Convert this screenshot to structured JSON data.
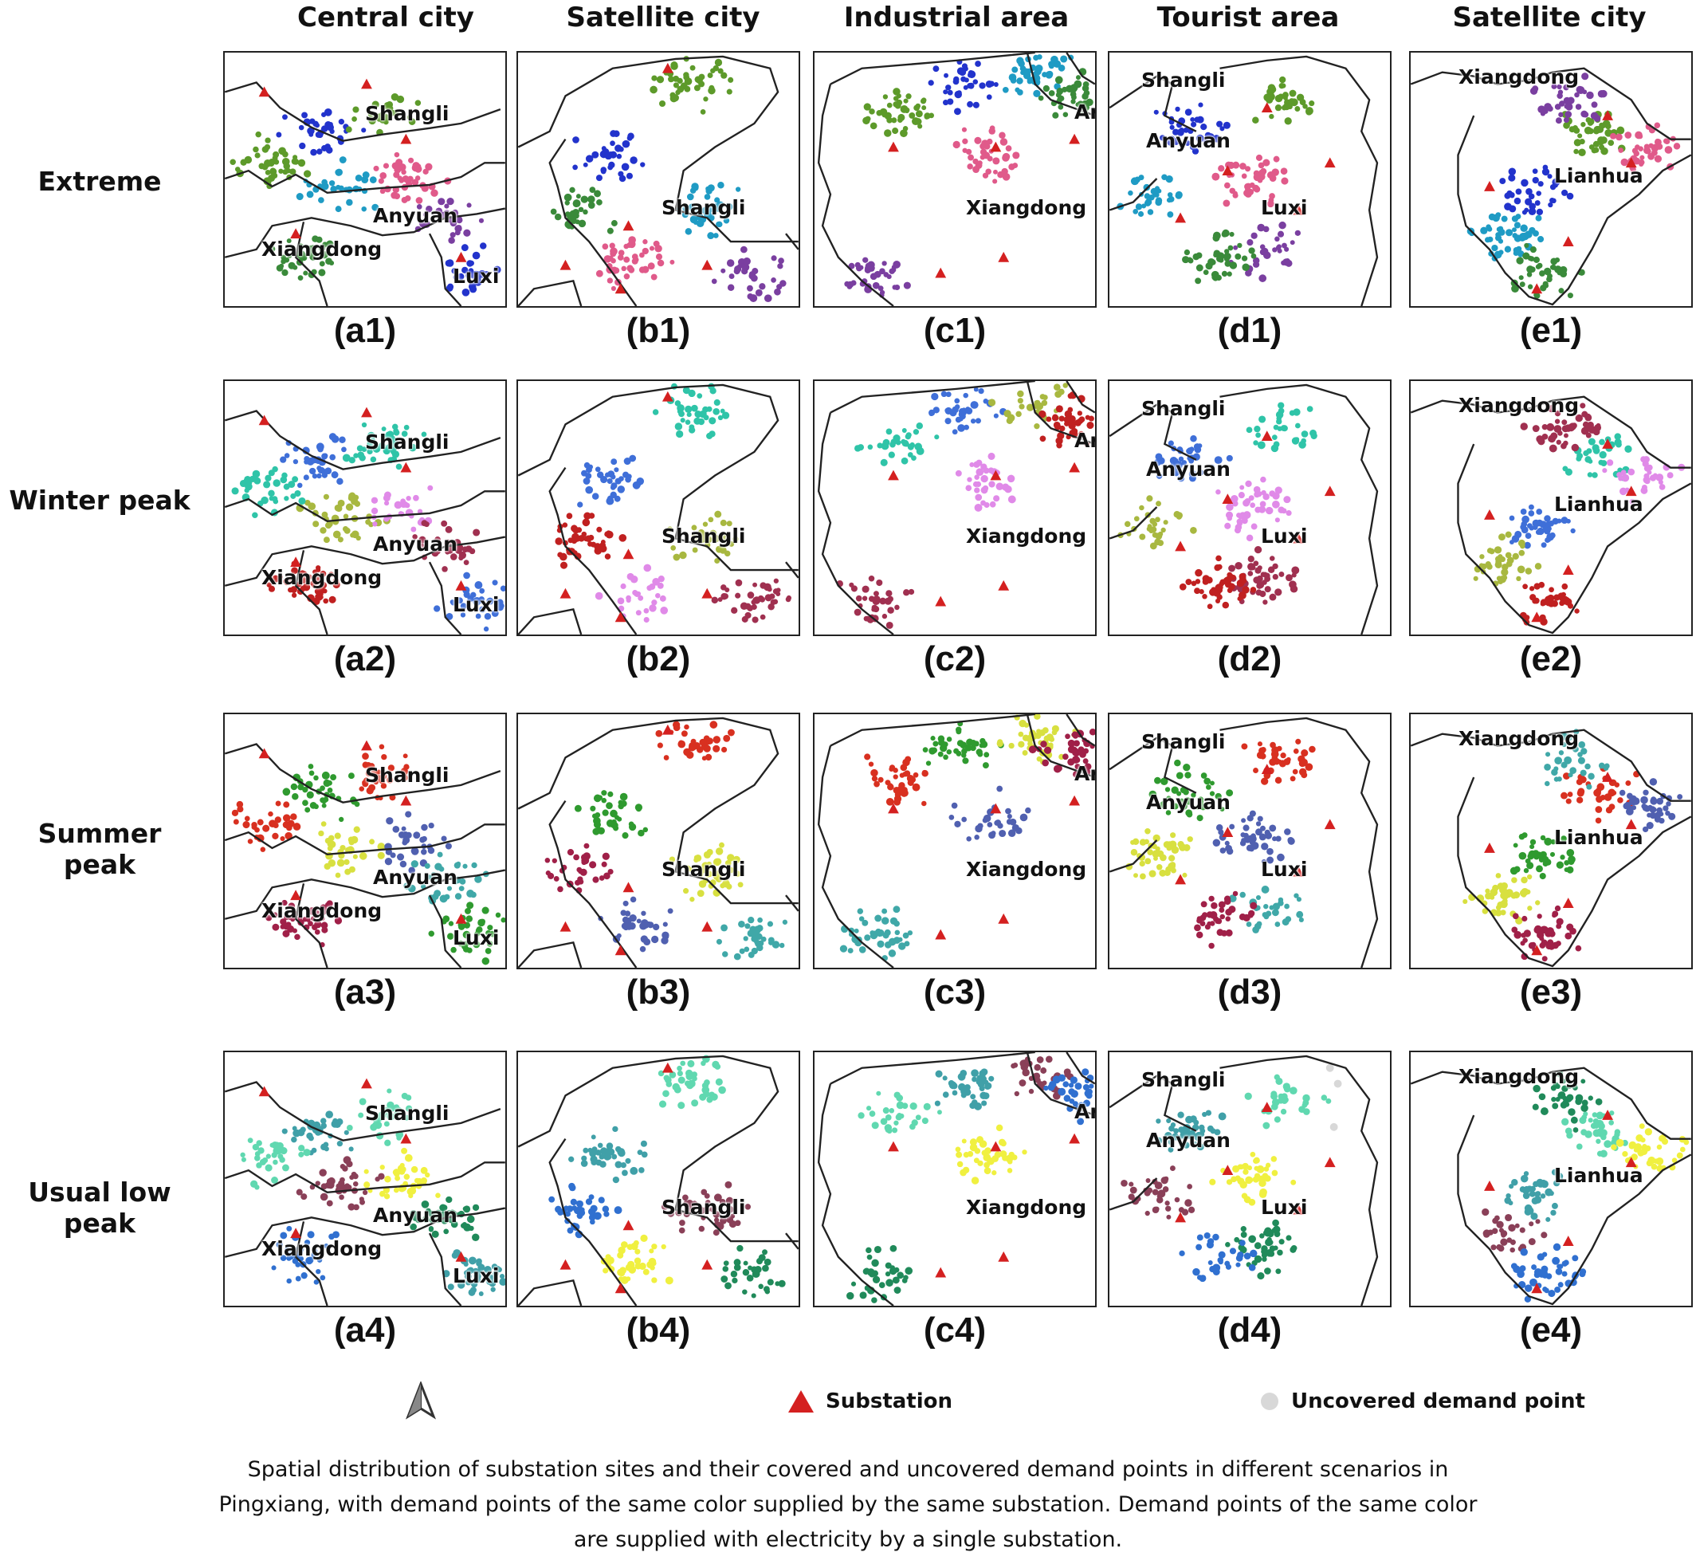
{
  "columns": [
    "Central city",
    "Satellite city",
    "Industrial area",
    "Tourist area",
    "Satellite city"
  ],
  "rows": [
    "Extreme",
    "Winter peak",
    "Summer peak",
    "Usual low peak"
  ],
  "panel_labels": [
    [
      "(a1)",
      "(b1)",
      "(c1)",
      "(d1)",
      "(e1)"
    ],
    [
      "(a2)",
      "(b2)",
      "(c2)",
      "(d2)",
      "(e2)"
    ],
    [
      "(a3)",
      "(b3)",
      "(c3)",
      "(d3)",
      "(e3)"
    ],
    [
      "(a4)",
      "(b4)",
      "(c4)",
      "(d4)",
      "(e4)"
    ]
  ],
  "place_names": {
    "a": [
      "Shangli",
      "Anyuan",
      "Xiangdong",
      "Luxi"
    ],
    "b": [
      "Shangli"
    ],
    "c": [
      "Xiangdong",
      "Ar"
    ],
    "d": [
      "Shangli",
      "Anyuan",
      "Luxi"
    ],
    "e": [
      "Xiangdong",
      "Lianhua"
    ]
  },
  "legend": {
    "north_arrow": "north-arrow-icon",
    "substation": "Substation",
    "uncovered": "Uncovered demand point",
    "substation_color": "#d42020",
    "uncovered_color": "#d8d8d8"
  },
  "cluster_palettes": [
    [
      "#2233cc",
      "#5d9a2a",
      "#1f9bc4",
      "#e05a8a",
      "#7a3fa0",
      "#3a8a3a"
    ],
    [
      "#3f6fd8",
      "#2fc4a8",
      "#a8b840",
      "#e08ae8",
      "#a03050",
      "#c02020"
    ],
    [
      "#2f9a2f",
      "#d83020",
      "#d8e040",
      "#5060b0",
      "#40a8a8",
      "#a02048"
    ],
    [
      "#40a0a8",
      "#60d8b0",
      "#8a4058",
      "#f0f040",
      "#208a5a",
      "#3070d0"
    ]
  ],
  "caption": "Spatial distribution of substation sites and their covered and uncovered demand points in different scenarios in Pingxiang, with demand points of the same color supplied by the same substation. Demand points of the same color are supplied with electricity by a single substation."
}
